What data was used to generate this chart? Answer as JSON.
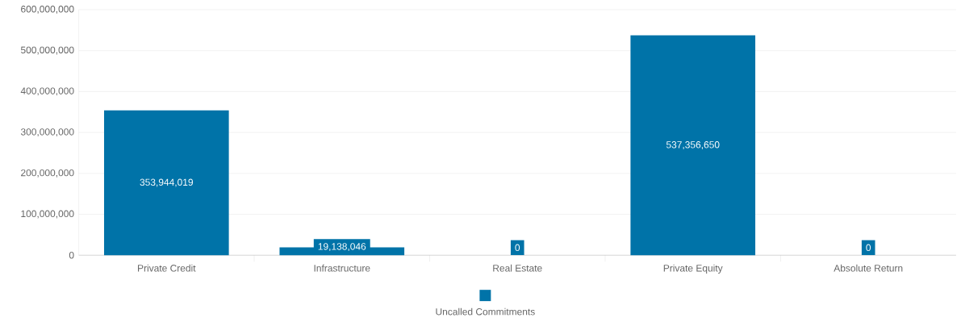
{
  "chart_data": {
    "type": "bar",
    "categories": [
      "Private Credit",
      "Infrastructure",
      "Real Estate",
      "Private Equity",
      "Absolute Return"
    ],
    "series": [
      {
        "name": "Uncalled Commitments",
        "color": "#0073a8",
        "values": [
          353944019,
          19138046,
          0,
          537356650,
          0
        ],
        "value_labels": [
          "353,944,019",
          "19,138,046",
          "0",
          "537,356,650",
          "0"
        ]
      }
    ],
    "ylim": [
      0,
      600000000
    ],
    "yticks": [
      0,
      {
        "value": 100000000,
        "label": "100,000,000"
      },
      {
        "value": 200000000,
        "label": "200,000,000"
      },
      {
        "value": 300000000,
        "label": "300,000,000"
      },
      {
        "value": 400000000,
        "label": "400,000,000"
      },
      {
        "value": 500000000,
        "label": "500,000,000"
      },
      {
        "value": 600000000,
        "label": "600,000,000"
      }
    ],
    "grid": "y",
    "legend": "bottom"
  }
}
